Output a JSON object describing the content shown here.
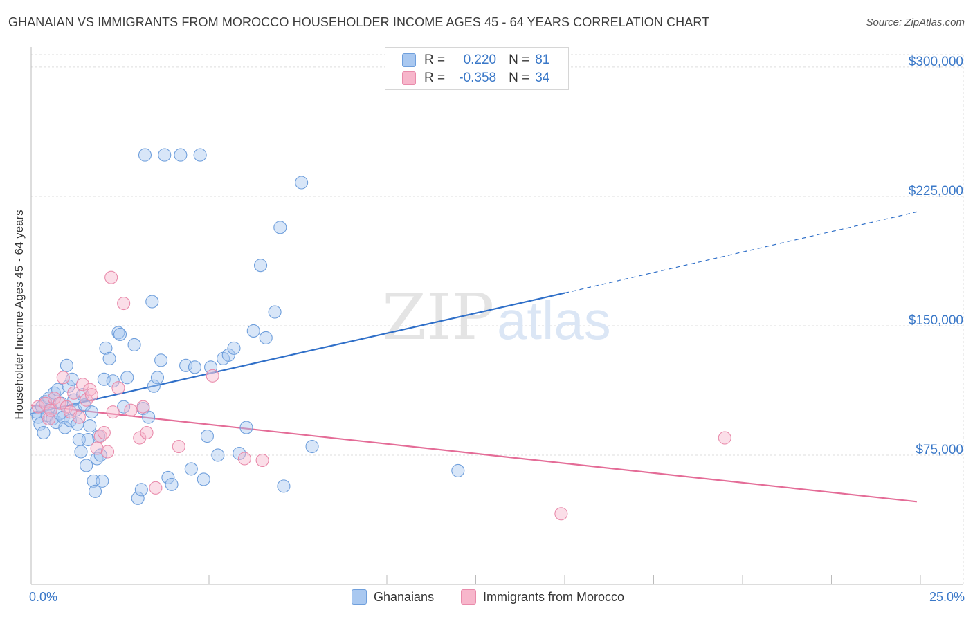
{
  "header": {
    "title": "GHANAIAN VS IMMIGRANTS FROM MOROCCO HOUSEHOLDER INCOME AGES 45 - 64 YEARS CORRELATION CHART",
    "source": "Source: ZipAtlas.com"
  },
  "legend_top": {
    "rows": [
      {
        "r_label": "R =",
        "r_value": "0.220",
        "n_label": "N =",
        "n_value": "81",
        "color": "#a9c8f0"
      },
      {
        "r_label": "R =",
        "r_value": "-0.358",
        "n_label": "N =",
        "n_value": "34",
        "color": "#f7b6cb"
      }
    ]
  },
  "legend_bottom": {
    "items": [
      {
        "label": "Ghanaians",
        "color": "#a9c8f0"
      },
      {
        "label": "Immigrants from Morocco",
        "color": "#f7b6cb"
      }
    ]
  },
  "watermark": {
    "zip": "ZIP",
    "atlas": "atlas"
  },
  "chart_data": {
    "type": "scatter",
    "title": "GHANAIAN VS IMMIGRANTS FROM MOROCCO HOUSEHOLDER INCOME AGES 45 - 64 YEARS CORRELATION CHART",
    "xlabel": "",
    "ylabel": "Householder Income Ages 45 - 64 years",
    "xlim": [
      0,
      25
    ],
    "ylim": [
      0,
      310000
    ],
    "x_tick_labels": [
      "0.0%",
      "25.0%"
    ],
    "y_ticks": [
      75000,
      150000,
      225000,
      300000
    ],
    "y_tick_labels": [
      "$75,000",
      "$150,000",
      "$225,000",
      "$300,000"
    ],
    "grid": true,
    "series": [
      {
        "name": "Ghanaians",
        "color": "#6f9fdc",
        "fill": "#a9c8f0",
        "r": 0.22,
        "n": 81,
        "trend": {
          "x0": 0.0,
          "y0": 99000,
          "x1": 15.0,
          "y1": 169000,
          "dash_to_x": 24.9,
          "dash_to_y": 216000
        },
        "points": [
          [
            0.15,
            100000
          ],
          [
            0.2,
            97000
          ],
          [
            0.25,
            93000
          ],
          [
            0.3,
            103000
          ],
          [
            0.35,
            88000
          ],
          [
            0.4,
            106000
          ],
          [
            0.45,
            98000
          ],
          [
            0.5,
            108000
          ],
          [
            0.55,
            102000
          ],
          [
            0.6,
            96000
          ],
          [
            0.65,
            111000
          ],
          [
            0.7,
            94000
          ],
          [
            0.75,
            113000
          ],
          [
            0.8,
            99000
          ],
          [
            0.85,
            105000
          ],
          [
            0.9,
            97000
          ],
          [
            0.95,
            91000
          ],
          [
            1.0,
            127000
          ],
          [
            1.05,
            115000
          ],
          [
            1.1,
            95000
          ],
          [
            1.15,
            119000
          ],
          [
            1.2,
            107000
          ],
          [
            1.25,
            101000
          ],
          [
            1.3,
            93000
          ],
          [
            1.35,
            84000
          ],
          [
            1.4,
            77000
          ],
          [
            1.45,
            110000
          ],
          [
            1.5,
            104000
          ],
          [
            1.55,
            69000
          ],
          [
            1.6,
            84000
          ],
          [
            1.65,
            92000
          ],
          [
            1.7,
            100000
          ],
          [
            1.75,
            60000
          ],
          [
            1.8,
            54000
          ],
          [
            1.85,
            73000
          ],
          [
            1.9,
            86000
          ],
          [
            1.95,
            75000
          ],
          [
            2.0,
            60000
          ],
          [
            2.05,
            119000
          ],
          [
            2.1,
            137000
          ],
          [
            2.2,
            131000
          ],
          [
            2.3,
            118000
          ],
          [
            2.45,
            146000
          ],
          [
            2.5,
            145000
          ],
          [
            2.6,
            103000
          ],
          [
            2.7,
            120000
          ],
          [
            2.9,
            139000
          ],
          [
            3.0,
            50000
          ],
          [
            3.1,
            55000
          ],
          [
            3.15,
            102000
          ],
          [
            3.2,
            249000
          ],
          [
            3.3,
            97000
          ],
          [
            3.4,
            164000
          ],
          [
            3.45,
            115000
          ],
          [
            3.55,
            120000
          ],
          [
            3.65,
            130000
          ],
          [
            3.75,
            249000
          ],
          [
            3.85,
            62000
          ],
          [
            3.95,
            58000
          ],
          [
            4.2,
            249000
          ],
          [
            4.35,
            127000
          ],
          [
            4.5,
            67000
          ],
          [
            4.6,
            126000
          ],
          [
            4.75,
            249000
          ],
          [
            4.85,
            61000
          ],
          [
            4.95,
            86000
          ],
          [
            5.05,
            126000
          ],
          [
            5.25,
            75000
          ],
          [
            5.4,
            131000
          ],
          [
            5.55,
            133000
          ],
          [
            5.7,
            137000
          ],
          [
            5.85,
            76000
          ],
          [
            6.05,
            91000
          ],
          [
            6.25,
            147000
          ],
          [
            6.45,
            185000
          ],
          [
            6.6,
            143000
          ],
          [
            6.85,
            158000
          ],
          [
            7.0,
            207000
          ],
          [
            7.1,
            57000
          ],
          [
            7.6,
            233000
          ],
          [
            7.9,
            80000
          ],
          [
            12.0,
            66000
          ]
        ]
      },
      {
        "name": "Immigrants from Morocco",
        "color": "#e98bab",
        "fill": "#f7b6cb",
        "r": -0.358,
        "n": 34,
        "trend": {
          "x0": 0.0,
          "y0": 104000,
          "x1": 24.9,
          "y1": 48000
        },
        "points": [
          [
            0.2,
            103000
          ],
          [
            0.4,
            105000
          ],
          [
            0.5,
            96000
          ],
          [
            0.55,
            101000
          ],
          [
            0.65,
            108000
          ],
          [
            0.8,
            105000
          ],
          [
            0.9,
            120000
          ],
          [
            1.0,
            103000
          ],
          [
            1.1,
            100000
          ],
          [
            1.2,
            111000
          ],
          [
            1.35,
            97000
          ],
          [
            1.45,
            116000
          ],
          [
            1.55,
            107000
          ],
          [
            1.65,
            113000
          ],
          [
            1.7,
            110000
          ],
          [
            1.85,
            79000
          ],
          [
            1.95,
            86000
          ],
          [
            2.05,
            88000
          ],
          [
            2.15,
            77000
          ],
          [
            2.25,
            178000
          ],
          [
            2.3,
            100000
          ],
          [
            2.45,
            114000
          ],
          [
            2.6,
            163000
          ],
          [
            2.8,
            101000
          ],
          [
            3.05,
            85000
          ],
          [
            3.15,
            103000
          ],
          [
            3.25,
            88000
          ],
          [
            3.5,
            56000
          ],
          [
            4.15,
            80000
          ],
          [
            5.1,
            121000
          ],
          [
            6.0,
            73000
          ],
          [
            6.5,
            72000
          ],
          [
            14.9,
            41000
          ],
          [
            19.5,
            85000
          ]
        ]
      }
    ]
  }
}
